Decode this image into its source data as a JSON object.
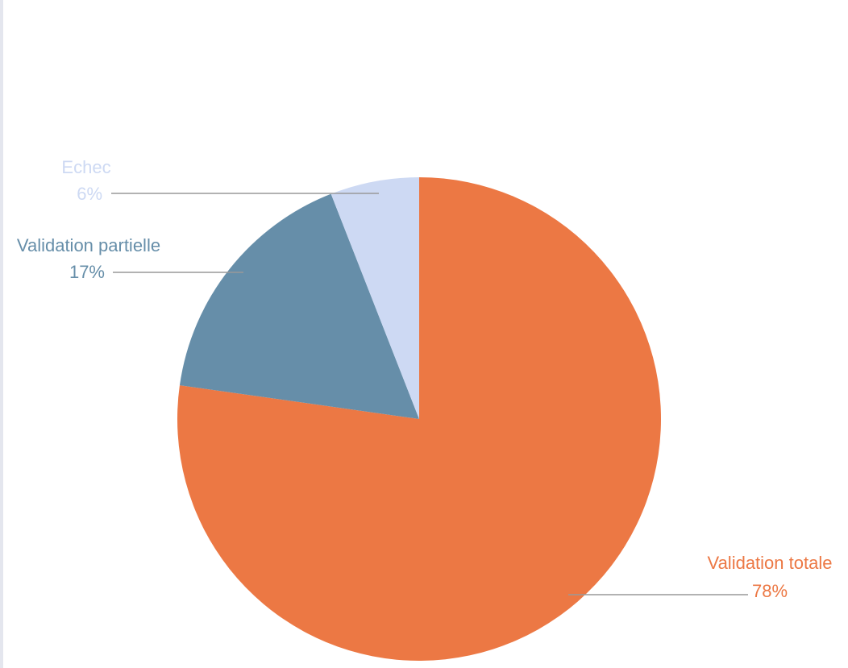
{
  "chart_data": {
    "type": "pie",
    "categories": [
      "Validation totale",
      "Validation partielle",
      "Echec"
    ],
    "values": [
      78,
      17,
      6
    ],
    "value_labels": [
      "78%",
      "17%",
      "6%"
    ],
    "colors": [
      "#ec7844",
      "#668ea9",
      "#cdd9f3"
    ]
  }
}
